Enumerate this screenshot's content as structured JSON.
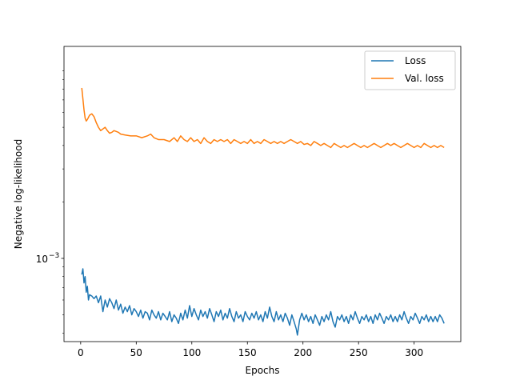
{
  "chart_data": {
    "type": "line",
    "xlabel": "Epochs",
    "ylabel": "Negative log-likelihood",
    "yscale": "log",
    "xlim": [
      -15,
      342
    ],
    "ylim": [
      0.00036,
      0.0135
    ],
    "grid": false,
    "legend": "top-right",
    "x_ticks": [
      {
        "value": 0,
        "label": "0"
      },
      {
        "value": 50,
        "label": "50"
      },
      {
        "value": 100,
        "label": "100"
      },
      {
        "value": 150,
        "label": "150"
      },
      {
        "value": 200,
        "label": "200"
      },
      {
        "value": 250,
        "label": "250"
      },
      {
        "value": 300,
        "label": "300"
      }
    ],
    "y_major_ticks": [
      {
        "value": 0.001,
        "base": "10",
        "exponent": "−3"
      }
    ],
    "y_minor_ticks": [
      0.0004,
      0.0005,
      0.0006,
      0.0007,
      0.0008,
      0.0009,
      0.002,
      0.003,
      0.004,
      0.005,
      0.006,
      0.007,
      0.008,
      0.009,
      0.01
    ],
    "series": [
      {
        "name": "Loss",
        "color": "#1f77b4",
        "points": [
          [
            1,
            0.00082
          ],
          [
            2,
            0.00088
          ],
          [
            3,
            0.00074
          ],
          [
            4,
            0.0008
          ],
          [
            5,
            0.00066
          ],
          [
            6,
            0.00071
          ],
          [
            7,
            0.0006
          ],
          [
            8,
            0.00064
          ],
          [
            10,
            0.00063
          ],
          [
            12,
            0.00061
          ],
          [
            14,
            0.00063
          ],
          [
            16,
            0.00058
          ],
          [
            18,
            0.00063
          ],
          [
            20,
            0.00052
          ],
          [
            22,
            0.0006
          ],
          [
            24,
            0.00055
          ],
          [
            26,
            0.00061
          ],
          [
            28,
            0.00058
          ],
          [
            30,
            0.00054
          ],
          [
            32,
            0.0006
          ],
          [
            34,
            0.00053
          ],
          [
            36,
            0.00057
          ],
          [
            38,
            0.00051
          ],
          [
            40,
            0.00055
          ],
          [
            42,
            0.00052
          ],
          [
            44,
            0.00056
          ],
          [
            46,
            0.0005
          ],
          [
            48,
            0.00054
          ],
          [
            50,
            0.00052
          ],
          [
            52,
            0.00049
          ],
          [
            54,
            0.00053
          ],
          [
            56,
            0.00048
          ],
          [
            58,
            0.00052
          ],
          [
            60,
            0.00051
          ],
          [
            62,
            0.00047
          ],
          [
            64,
            0.00053
          ],
          [
            66,
            0.0005
          ],
          [
            68,
            0.00048
          ],
          [
            70,
            0.00052
          ],
          [
            72,
            0.00047
          ],
          [
            74,
            0.00051
          ],
          [
            76,
            0.00049
          ],
          [
            78,
            0.00047
          ],
          [
            80,
            0.00052
          ],
          [
            82,
            0.00046
          ],
          [
            84,
            0.0005
          ],
          [
            86,
            0.00048
          ],
          [
            88,
            0.00045
          ],
          [
            90,
            0.00051
          ],
          [
            92,
            0.00047
          ],
          [
            94,
            0.00053
          ],
          [
            96,
            0.00048
          ],
          [
            98,
            0.00056
          ],
          [
            100,
            0.00049
          ],
          [
            102,
            0.00054
          ],
          [
            104,
            0.0005
          ],
          [
            106,
            0.00047
          ],
          [
            108,
            0.00053
          ],
          [
            110,
            0.00049
          ],
          [
            112,
            0.00052
          ],
          [
            114,
            0.00048
          ],
          [
            116,
            0.00054
          ],
          [
            118,
            0.0005
          ],
          [
            120,
            0.00046
          ],
          [
            122,
            0.00052
          ],
          [
            124,
            0.00049
          ],
          [
            126,
            0.00053
          ],
          [
            128,
            0.00047
          ],
          [
            130,
            0.00051
          ],
          [
            132,
            0.00048
          ],
          [
            134,
            0.00054
          ],
          [
            136,
            0.00049
          ],
          [
            138,
            0.00046
          ],
          [
            140,
            0.00052
          ],
          [
            142,
            0.00048
          ],
          [
            144,
            0.0005
          ],
          [
            146,
            0.00046
          ],
          [
            148,
            0.00052
          ],
          [
            150,
            0.00049
          ],
          [
            152,
            0.00047
          ],
          [
            154,
            0.00051
          ],
          [
            156,
            0.00048
          ],
          [
            158,
            0.00052
          ],
          [
            160,
            0.00047
          ],
          [
            162,
            0.0005
          ],
          [
            164,
            0.00046
          ],
          [
            166,
            0.00052
          ],
          [
            168,
            0.00048
          ],
          [
            170,
            0.00055
          ],
          [
            172,
            0.00049
          ],
          [
            174,
            0.00046
          ],
          [
            176,
            0.00052
          ],
          [
            178,
            0.00047
          ],
          [
            180,
            0.0005
          ],
          [
            182,
            0.00046
          ],
          [
            184,
            0.00051
          ],
          [
            186,
            0.00048
          ],
          [
            188,
            0.00044
          ],
          [
            190,
            0.0005
          ],
          [
            192,
            0.00046
          ],
          [
            194,
            0.00042
          ],
          [
            195,
            0.00039
          ],
          [
            197,
            0.00047
          ],
          [
            199,
            0.00051
          ],
          [
            201,
            0.00047
          ],
          [
            203,
            0.0005
          ],
          [
            205,
            0.00046
          ],
          [
            207,
            0.00049
          ],
          [
            209,
            0.00045
          ],
          [
            211,
            0.0005
          ],
          [
            213,
            0.00047
          ],
          [
            215,
            0.00044
          ],
          [
            217,
            0.00049
          ],
          [
            219,
            0.00046
          ],
          [
            221,
            0.0005
          ],
          [
            223,
            0.00047
          ],
          [
            225,
            0.00052
          ],
          [
            227,
            0.00046
          ],
          [
            229,
            0.00043
          ],
          [
            231,
            0.00049
          ],
          [
            233,
            0.00047
          ],
          [
            235,
            0.0005
          ],
          [
            237,
            0.00046
          ],
          [
            239,
            0.00049
          ],
          [
            241,
            0.00045
          ],
          [
            243,
            0.0005
          ],
          [
            245,
            0.00047
          ],
          [
            247,
            0.00052
          ],
          [
            249,
            0.00048
          ],
          [
            251,
            0.00045
          ],
          [
            253,
            0.00049
          ],
          [
            255,
            0.00047
          ],
          [
            257,
            0.0005
          ],
          [
            259,
            0.00046
          ],
          [
            261,
            0.00049
          ],
          [
            263,
            0.00045
          ],
          [
            265,
            0.0005
          ],
          [
            267,
            0.00047
          ],
          [
            269,
            0.00051
          ],
          [
            271,
            0.00048
          ],
          [
            273,
            0.00045
          ],
          [
            275,
            0.00049
          ],
          [
            277,
            0.00047
          ],
          [
            279,
            0.0005
          ],
          [
            281,
            0.00046
          ],
          [
            283,
            0.00049
          ],
          [
            285,
            0.00046
          ],
          [
            287,
            0.0005
          ],
          [
            289,
            0.00047
          ],
          [
            291,
            0.00052
          ],
          [
            293,
            0.00048
          ],
          [
            295,
            0.00045
          ],
          [
            297,
            0.00049
          ],
          [
            299,
            0.00047
          ],
          [
            301,
            0.00051
          ],
          [
            303,
            0.00048
          ],
          [
            305,
            0.00045
          ],
          [
            307,
            0.00049
          ],
          [
            309,
            0.00047
          ],
          [
            311,
            0.0005
          ],
          [
            313,
            0.00046
          ],
          [
            315,
            0.00049
          ],
          [
            317,
            0.00046
          ],
          [
            319,
            0.00049
          ],
          [
            321,
            0.00046
          ],
          [
            323,
            0.0005
          ],
          [
            325,
            0.00048
          ],
          [
            327,
            0.00045
          ]
        ]
      },
      {
        "name": "Val. loss",
        "color": "#ff7f0e",
        "points": [
          [
            1,
            0.0081
          ],
          [
            2,
            0.0071
          ],
          [
            3,
            0.0062
          ],
          [
            4,
            0.0056
          ],
          [
            5,
            0.0054
          ],
          [
            6,
            0.0055
          ],
          [
            8,
            0.0058
          ],
          [
            10,
            0.0059
          ],
          [
            12,
            0.0057
          ],
          [
            14,
            0.0053
          ],
          [
            16,
            0.005
          ],
          [
            18,
            0.0048
          ],
          [
            20,
            0.0049
          ],
          [
            22,
            0.005
          ],
          [
            24,
            0.0048
          ],
          [
            26,
            0.00465
          ],
          [
            28,
            0.0047
          ],
          [
            30,
            0.0048
          ],
          [
            32,
            0.00475
          ],
          [
            34,
            0.0047
          ],
          [
            36,
            0.0046
          ],
          [
            40,
            0.00455
          ],
          [
            45,
            0.0045
          ],
          [
            50,
            0.0045
          ],
          [
            55,
            0.0044
          ],
          [
            60,
            0.0045
          ],
          [
            63,
            0.0046
          ],
          [
            66,
            0.0044
          ],
          [
            70,
            0.0043
          ],
          [
            75,
            0.0043
          ],
          [
            80,
            0.0042
          ],
          [
            84,
            0.0044
          ],
          [
            87,
            0.0042
          ],
          [
            90,
            0.0045
          ],
          [
            93,
            0.0043
          ],
          [
            96,
            0.0042
          ],
          [
            99,
            0.0044
          ],
          [
            102,
            0.0042
          ],
          [
            105,
            0.0043
          ],
          [
            108,
            0.0041
          ],
          [
            111,
            0.0044
          ],
          [
            114,
            0.0042
          ],
          [
            117,
            0.0041
          ],
          [
            120,
            0.0043
          ],
          [
            123,
            0.0042
          ],
          [
            126,
            0.0043
          ],
          [
            129,
            0.0042
          ],
          [
            132,
            0.0043
          ],
          [
            135,
            0.0041
          ],
          [
            138,
            0.0043
          ],
          [
            141,
            0.0042
          ],
          [
            144,
            0.0041
          ],
          [
            147,
            0.0042
          ],
          [
            150,
            0.0041
          ],
          [
            153,
            0.0043
          ],
          [
            156,
            0.0041
          ],
          [
            159,
            0.0042
          ],
          [
            162,
            0.0041
          ],
          [
            165,
            0.0043
          ],
          [
            168,
            0.0042
          ],
          [
            171,
            0.0041
          ],
          [
            174,
            0.0042
          ],
          [
            177,
            0.0041
          ],
          [
            180,
            0.0042
          ],
          [
            183,
            0.0041
          ],
          [
            186,
            0.0042
          ],
          [
            189,
            0.0043
          ],
          [
            192,
            0.0042
          ],
          [
            195,
            0.0041
          ],
          [
            198,
            0.0042
          ],
          [
            201,
            0.00405
          ],
          [
            204,
            0.0041
          ],
          [
            207,
            0.004
          ],
          [
            210,
            0.0042
          ],
          [
            213,
            0.0041
          ],
          [
            216,
            0.004
          ],
          [
            219,
            0.0041
          ],
          [
            222,
            0.004
          ],
          [
            225,
            0.0039
          ],
          [
            228,
            0.0041
          ],
          [
            231,
            0.004
          ],
          [
            234,
            0.0039
          ],
          [
            237,
            0.004
          ],
          [
            240,
            0.0039
          ],
          [
            243,
            0.004
          ],
          [
            246,
            0.0041
          ],
          [
            249,
            0.004
          ],
          [
            252,
            0.0039
          ],
          [
            255,
            0.004
          ],
          [
            258,
            0.0039
          ],
          [
            261,
            0.004
          ],
          [
            264,
            0.0041
          ],
          [
            267,
            0.004
          ],
          [
            270,
            0.0039
          ],
          [
            273,
            0.004
          ],
          [
            276,
            0.0041
          ],
          [
            279,
            0.004
          ],
          [
            282,
            0.0041
          ],
          [
            285,
            0.004
          ],
          [
            288,
            0.0039
          ],
          [
            291,
            0.004
          ],
          [
            294,
            0.0041
          ],
          [
            297,
            0.004
          ],
          [
            300,
            0.0039
          ],
          [
            303,
            0.004
          ],
          [
            306,
            0.0039
          ],
          [
            309,
            0.0041
          ],
          [
            312,
            0.004
          ],
          [
            315,
            0.0039
          ],
          [
            318,
            0.004
          ],
          [
            321,
            0.0039
          ],
          [
            324,
            0.004
          ],
          [
            327,
            0.0039
          ]
        ]
      }
    ]
  }
}
